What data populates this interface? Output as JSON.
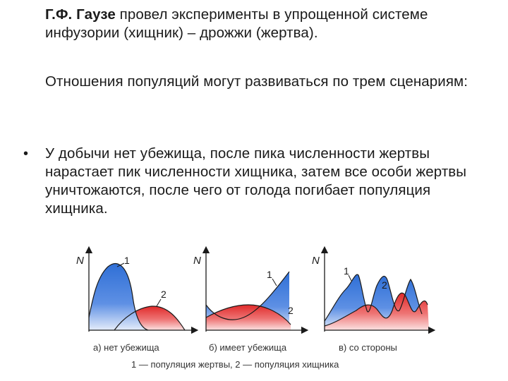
{
  "text": {
    "intro_bold": "Г.Ф. Гаузе",
    "intro_rest": " провел эксперименты в упрощенной системе инфузории (хищник) – дрожжи (жертва).",
    "scenarios": "Отношения популяций могут развиваться по трем сценариям:",
    "bullet_glyph": "•",
    "bullet_text": "У добычи нет убежища, после пика численности жертвы нарастает пик численности хищника, затем все особи жертвы уничтожаются, после чего от голода погибает популяция хищника."
  },
  "figure": {
    "axis_label": "N",
    "curve_1_label": "1",
    "curve_2_label": "2",
    "panels": [
      {
        "caption": "а) нет убежища"
      },
      {
        "caption": "б) имеет убежища"
      },
      {
        "caption": "в) со стороны"
      }
    ],
    "legend": "1 — популяция жертвы, 2 — популяция хищника"
  },
  "colors": {
    "prey_fill": "#2f6fd6",
    "predator_fill": "#e02a2a",
    "text": "#1a1a1a",
    "caption": "#333333"
  }
}
